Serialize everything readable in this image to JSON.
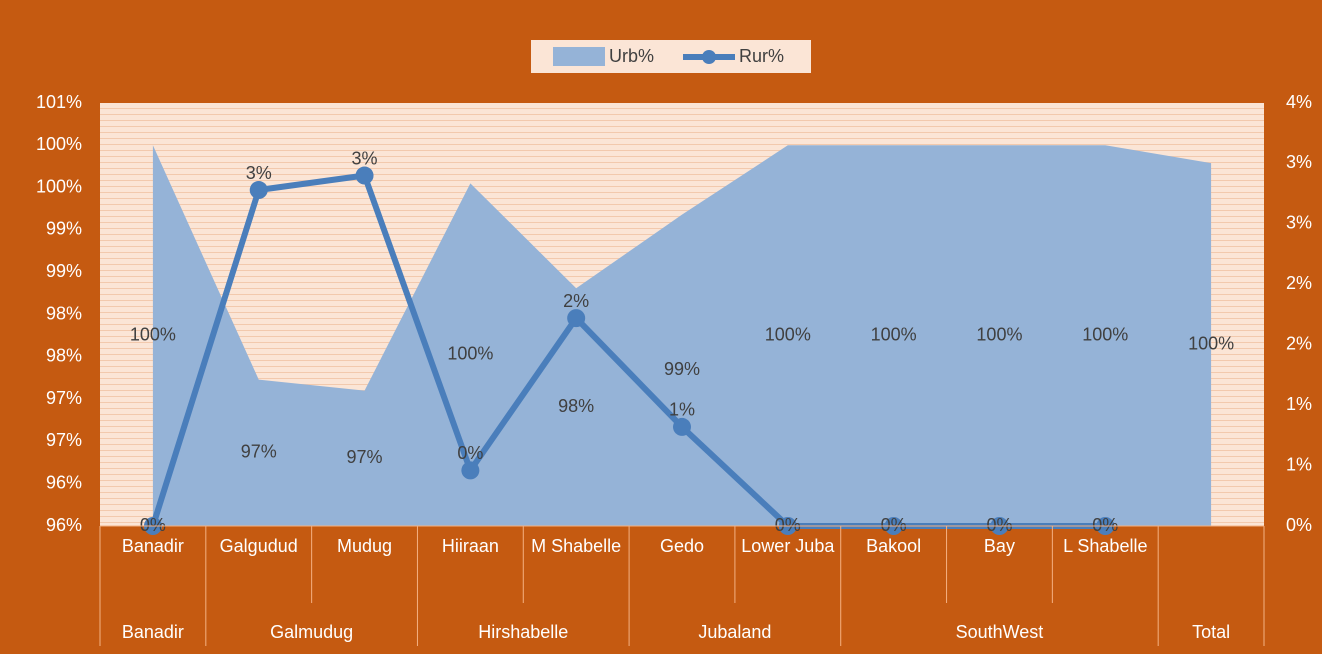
{
  "chart_data": {
    "type": "area-line",
    "categories": [
      "Banadir",
      "Galgudud",
      "Mudug",
      "Hiiraan",
      "M Shabelle",
      "Gedo",
      "Lower Juba",
      "Bakool",
      "Bay",
      "L Shabelle",
      null
    ],
    "groups": [
      {
        "label": "Banadir",
        "size": 1
      },
      {
        "label": "Galmudug",
        "size": 2
      },
      {
        "label": "Hirshabelle",
        "size": 2
      },
      {
        "label": "Jubaland",
        "size": 2
      },
      {
        "label": "SouthWest",
        "size": 3
      },
      {
        "label": "Total",
        "size": 1
      }
    ],
    "series": [
      {
        "name": "Urb%",
        "type": "area",
        "color": "#95b3d7",
        "values": [
          100.0,
          97.23,
          97.1,
          99.55,
          98.31,
          99.18,
          100.0,
          100.0,
          100.0,
          100.0,
          99.79
        ],
        "value_labels": [
          "100%",
          "97%",
          "97%",
          "100%",
          "98%",
          "99%",
          "100%",
          "100%",
          "100%",
          "100%",
          "100%"
        ]
      },
      {
        "name": "Rur%",
        "type": "line",
        "axis": "y2",
        "color": "#4a7ebb",
        "values": [
          0,
          2.78,
          2.9,
          0.46,
          1.72,
          0.82,
          0,
          0,
          0,
          0,
          null
        ],
        "value_labels": [
          "0%",
          "3%",
          "3%",
          "0%",
          "2%",
          "1%",
          "0%",
          "0%",
          "0%",
          "0%",
          null
        ]
      }
    ],
    "ylim": [
      95.5,
      100.5
    ],
    "yticks": [
      {
        "value": 95.5,
        "label": "96%"
      },
      {
        "value": 96,
        "label": "96%"
      },
      {
        "value": 96.5,
        "label": "97%"
      },
      {
        "value": 97,
        "label": "97%"
      },
      {
        "value": 97.5,
        "label": "98%"
      },
      {
        "value": 98,
        "label": "98%"
      },
      {
        "value": 98.5,
        "label": "99%"
      },
      {
        "value": 99,
        "label": "99%"
      },
      {
        "value": 99.5,
        "label": "100%"
      },
      {
        "value": 100,
        "label": "100%"
      },
      {
        "value": 100.5,
        "label": "101%"
      }
    ],
    "y2lim": [
      0,
      3.5
    ],
    "y2ticks": [
      {
        "value": 0,
        "label": "0%"
      },
      {
        "value": 0.5,
        "label": "1%"
      },
      {
        "value": 1,
        "label": "1%"
      },
      {
        "value": 1.5,
        "label": "2%"
      },
      {
        "value": 2,
        "label": "2%"
      },
      {
        "value": 2.5,
        "label": "3%"
      },
      {
        "value": 3,
        "label": "3%"
      },
      {
        "value": 3.5,
        "label": "4%"
      }
    ],
    "legend": "top"
  }
}
